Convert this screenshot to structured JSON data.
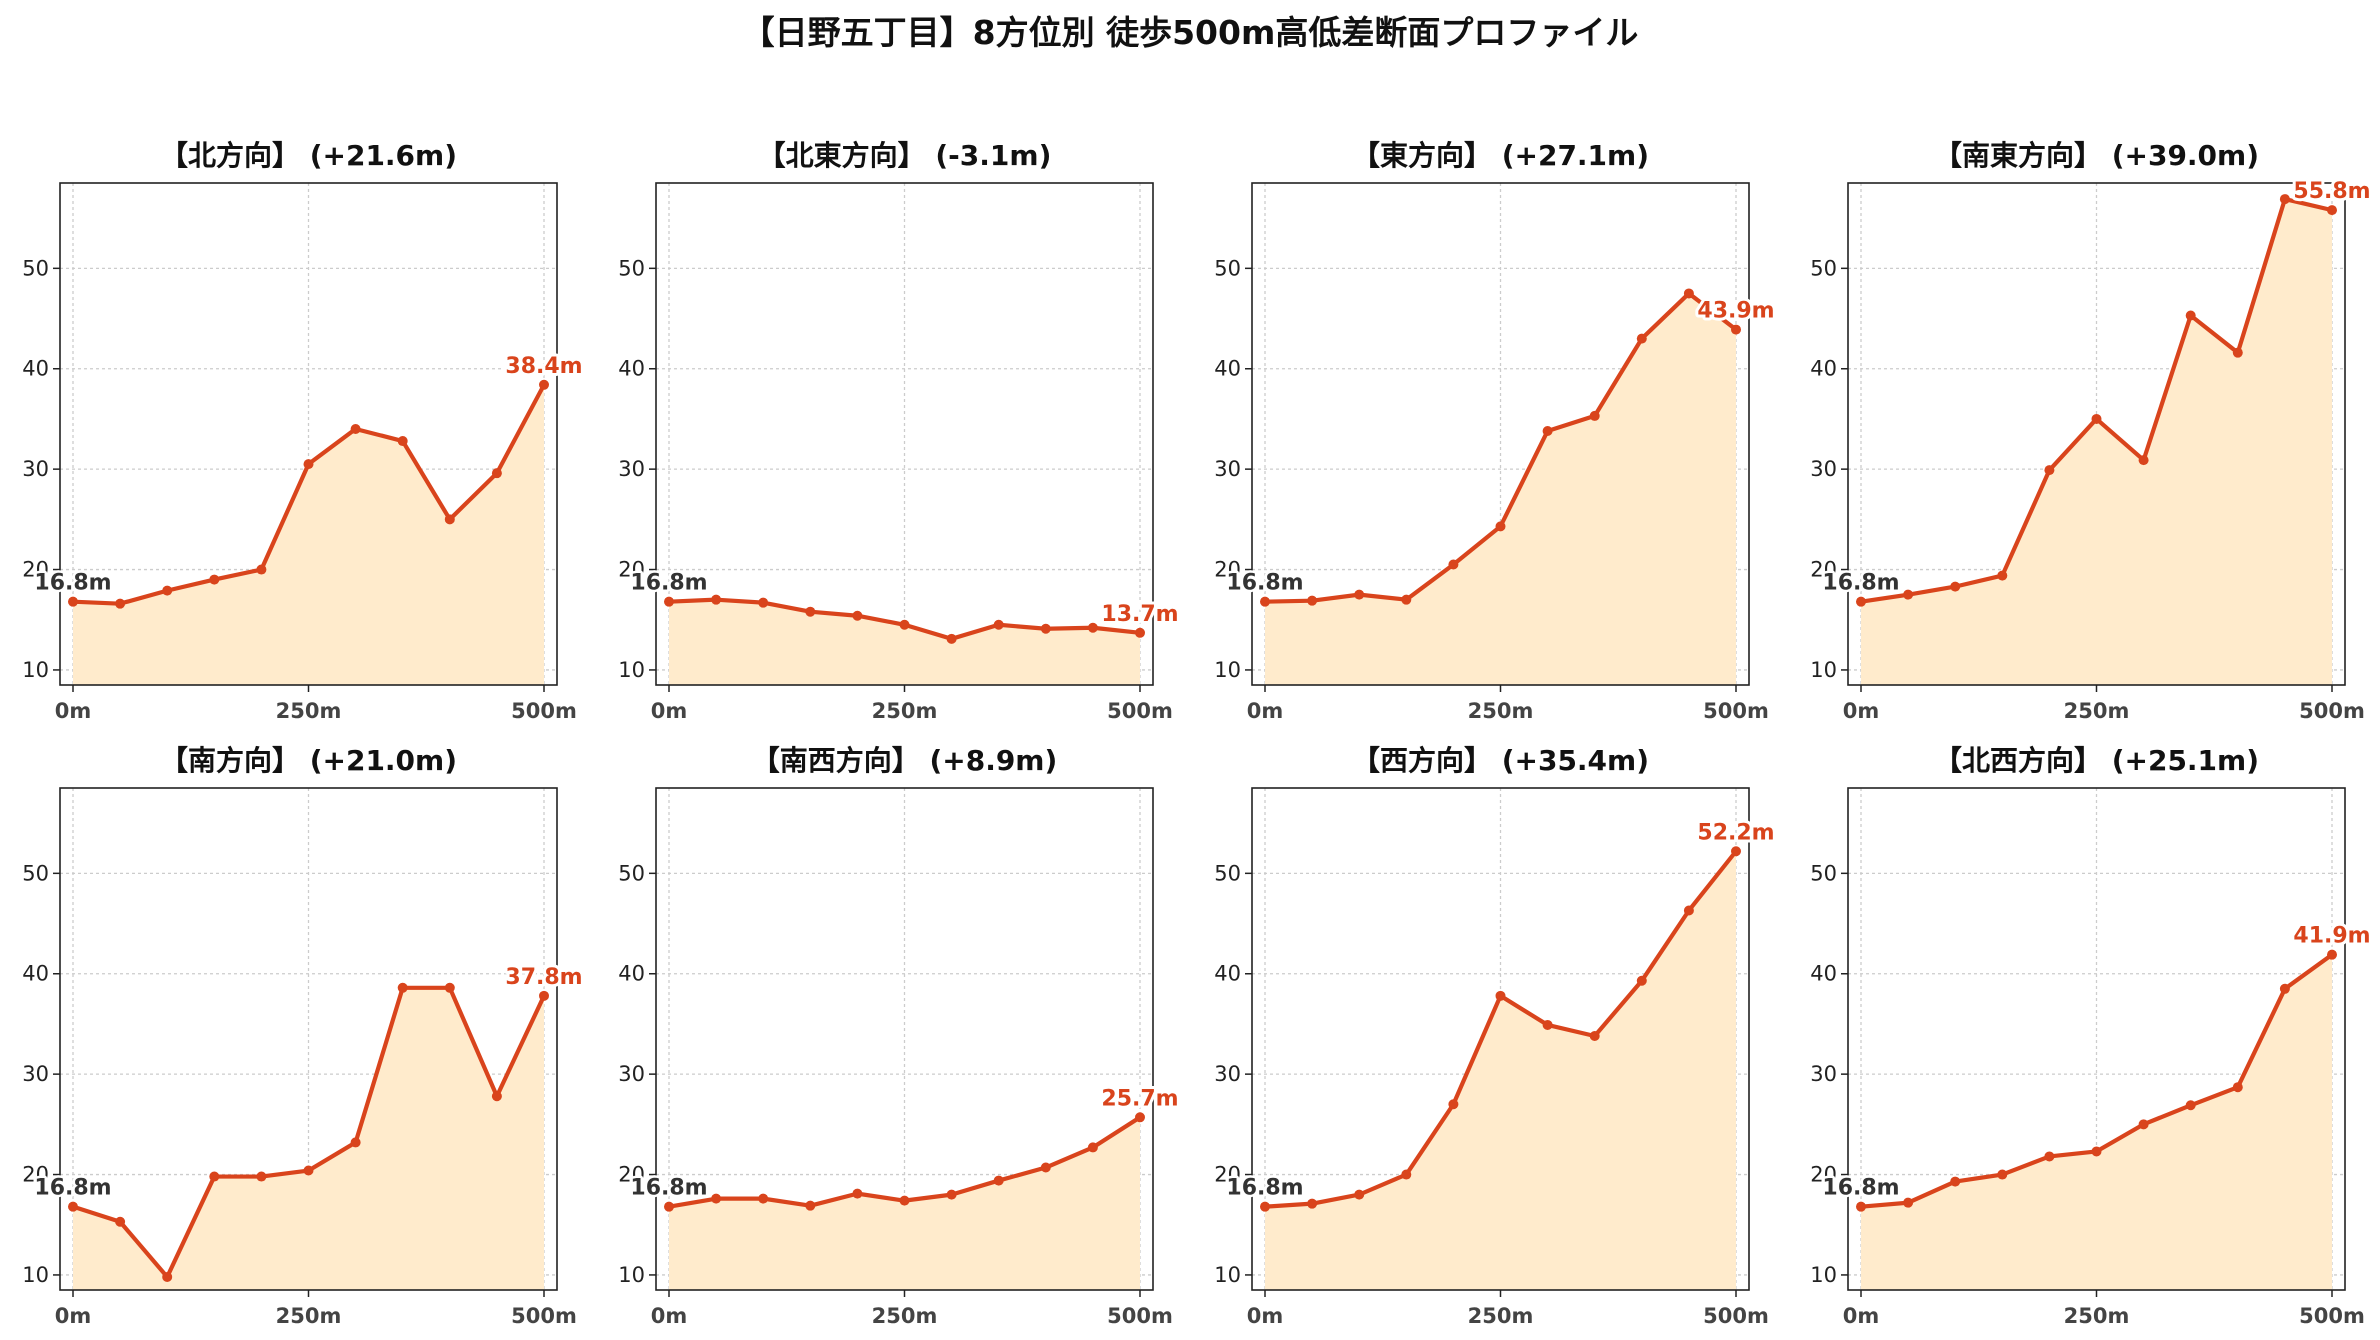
{
  "title": "【日野五丁目】8方位別 徒歩500m高低差断面プロファイル",
  "colors": {
    "line": "#d9441c",
    "fill": "#ffebcc",
    "grid": "#cccccc",
    "start_label": "#333333",
    "end_label": "#d9441c"
  },
  "chart_data": [
    {
      "type": "area",
      "title": "【北方向】 (+21.6m)",
      "x": [
        0,
        50,
        100,
        150,
        200,
        250,
        300,
        350,
        400,
        450,
        500
      ],
      "xticks": [
        "0m",
        "250m",
        "500m"
      ],
      "ylim": [
        8.5,
        58.5
      ],
      "yticks": [
        10,
        20,
        30,
        40,
        50
      ],
      "grid": true,
      "series": [
        {
          "values": [
            16.8,
            16.6,
            17.9,
            19.0,
            20.0,
            30.5,
            34.0,
            32.8,
            25.0,
            29.6,
            38.4
          ]
        }
      ],
      "start_label": "16.8m",
      "end_label": "38.4m"
    },
    {
      "type": "area",
      "title": "【北東方向】 (-3.1m)",
      "x": [
        0,
        50,
        100,
        150,
        200,
        250,
        300,
        350,
        400,
        450,
        500
      ],
      "xticks": [
        "0m",
        "250m",
        "500m"
      ],
      "ylim": [
        8.5,
        58.5
      ],
      "yticks": [
        10,
        20,
        30,
        40,
        50
      ],
      "grid": true,
      "series": [
        {
          "values": [
            16.8,
            17.0,
            16.7,
            15.8,
            15.4,
            14.5,
            13.1,
            14.5,
            14.1,
            14.2,
            13.7
          ]
        }
      ],
      "start_label": "16.8m",
      "end_label": "13.7m"
    },
    {
      "type": "area",
      "title": "【東方向】 (+27.1m)",
      "x": [
        0,
        50,
        100,
        150,
        200,
        250,
        300,
        350,
        400,
        450,
        500
      ],
      "xticks": [
        "0m",
        "250m",
        "500m"
      ],
      "ylim": [
        8.5,
        58.5
      ],
      "yticks": [
        10,
        20,
        30,
        40,
        50
      ],
      "grid": true,
      "series": [
        {
          "values": [
            16.8,
            16.9,
            17.5,
            17.0,
            20.5,
            24.3,
            33.8,
            35.3,
            43.0,
            47.5,
            43.9
          ]
        }
      ],
      "start_label": "16.8m",
      "end_label": "43.9m"
    },
    {
      "type": "area",
      "title": "【南東方向】 (+39.0m)",
      "x": [
        0,
        50,
        100,
        150,
        200,
        250,
        300,
        350,
        400,
        450,
        500
      ],
      "xticks": [
        "0m",
        "250m",
        "500m"
      ],
      "ylim": [
        8.5,
        58.5
      ],
      "yticks": [
        10,
        20,
        30,
        40,
        50
      ],
      "grid": true,
      "series": [
        {
          "values": [
            16.8,
            17.5,
            18.3,
            19.4,
            29.9,
            35.0,
            30.9,
            45.3,
            41.6,
            56.9,
            55.8
          ]
        }
      ],
      "start_label": "16.8m",
      "end_label": "55.8m"
    },
    {
      "type": "area",
      "title": "【南方向】 (+21.0m)",
      "x": [
        0,
        50,
        100,
        150,
        200,
        250,
        300,
        350,
        400,
        450,
        500
      ],
      "xticks": [
        "0m",
        "250m",
        "500m"
      ],
      "ylim": [
        8.5,
        58.5
      ],
      "yticks": [
        10,
        20,
        30,
        40,
        50
      ],
      "grid": true,
      "series": [
        {
          "values": [
            16.8,
            15.3,
            9.8,
            19.8,
            19.8,
            20.4,
            23.2,
            38.6,
            38.6,
            27.8,
            37.8
          ]
        }
      ],
      "start_label": "16.8m",
      "end_label": "37.8m"
    },
    {
      "type": "area",
      "title": "【南西方向】 (+8.9m)",
      "x": [
        0,
        50,
        100,
        150,
        200,
        250,
        300,
        350,
        400,
        450,
        500
      ],
      "xticks": [
        "0m",
        "250m",
        "500m"
      ],
      "ylim": [
        8.5,
        58.5
      ],
      "yticks": [
        10,
        20,
        30,
        40,
        50
      ],
      "grid": true,
      "series": [
        {
          "values": [
            16.8,
            17.6,
            17.6,
            16.9,
            18.1,
            17.4,
            18.0,
            19.4,
            20.7,
            22.7,
            25.7
          ]
        }
      ],
      "start_label": "16.8m",
      "end_label": "25.7m"
    },
    {
      "type": "area",
      "title": "【西方向】 (+35.4m)",
      "x": [
        0,
        50,
        100,
        150,
        200,
        250,
        300,
        350,
        400,
        450,
        500
      ],
      "xticks": [
        "0m",
        "250m",
        "500m"
      ],
      "ylim": [
        8.5,
        58.5
      ],
      "yticks": [
        10,
        20,
        30,
        40,
        50
      ],
      "grid": true,
      "series": [
        {
          "values": [
            16.8,
            17.1,
            18.0,
            20.0,
            27.0,
            37.8,
            34.9,
            33.8,
            39.3,
            46.3,
            52.2
          ]
        }
      ],
      "start_label": "16.8m",
      "end_label": "52.2m"
    },
    {
      "type": "area",
      "title": "【北西方向】 (+25.1m)",
      "x": [
        0,
        50,
        100,
        150,
        200,
        250,
        300,
        350,
        400,
        450,
        500
      ],
      "xticks": [
        "0m",
        "250m",
        "500m"
      ],
      "ylim": [
        8.5,
        58.5
      ],
      "yticks": [
        10,
        20,
        30,
        40,
        50
      ],
      "grid": true,
      "series": [
        {
          "values": [
            16.8,
            17.2,
            19.3,
            20.0,
            21.8,
            22.3,
            25.0,
            26.9,
            28.7,
            38.5,
            41.9
          ]
        }
      ],
      "start_label": "16.8m",
      "end_label": "41.9m"
    }
  ]
}
